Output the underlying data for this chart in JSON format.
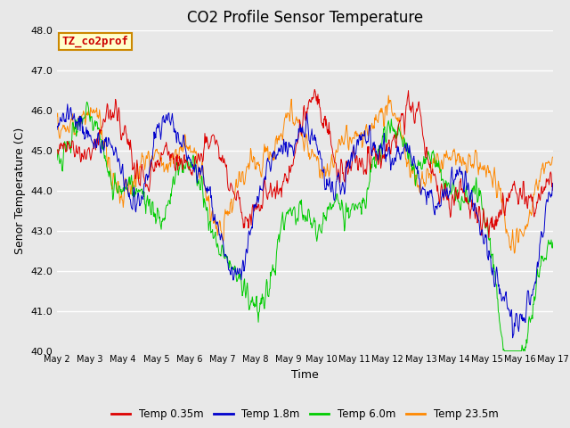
{
  "title": "CO2 Profile Sensor Temperature",
  "xlabel": "Time",
  "ylabel": "Senor Temperature (C)",
  "ylim": [
    40.0,
    48.0
  ],
  "yticks": [
    40.0,
    41.0,
    42.0,
    43.0,
    44.0,
    45.0,
    46.0,
    47.0,
    48.0
  ],
  "xtick_labels": [
    "May 2",
    "May 3",
    "May 4",
    "May 5",
    "May 6",
    "May 7",
    "May 8",
    "May 9",
    "May 10",
    "May 11",
    "May 12",
    "May 13",
    "May 14",
    "May 15",
    "May 16",
    "May 17"
  ],
  "annotation_text": "TZ_co2prof",
  "annotation_bg": "#ffffcc",
  "annotation_border": "#cc8800",
  "annotation_text_color": "#cc0000",
  "legend_entries": [
    "Temp 0.35m",
    "Temp 1.8m",
    "Temp 6.0m",
    "Temp 23.5m"
  ],
  "colors": [
    "#dd0000",
    "#0000cc",
    "#00cc00",
    "#ff8800"
  ],
  "bg_color": "#e8e8e8",
  "plot_bg": "#e8e8e8",
  "title_fontsize": 12,
  "axis_fontsize": 9,
  "tick_fontsize": 8,
  "n_points": 900,
  "seed": 7
}
